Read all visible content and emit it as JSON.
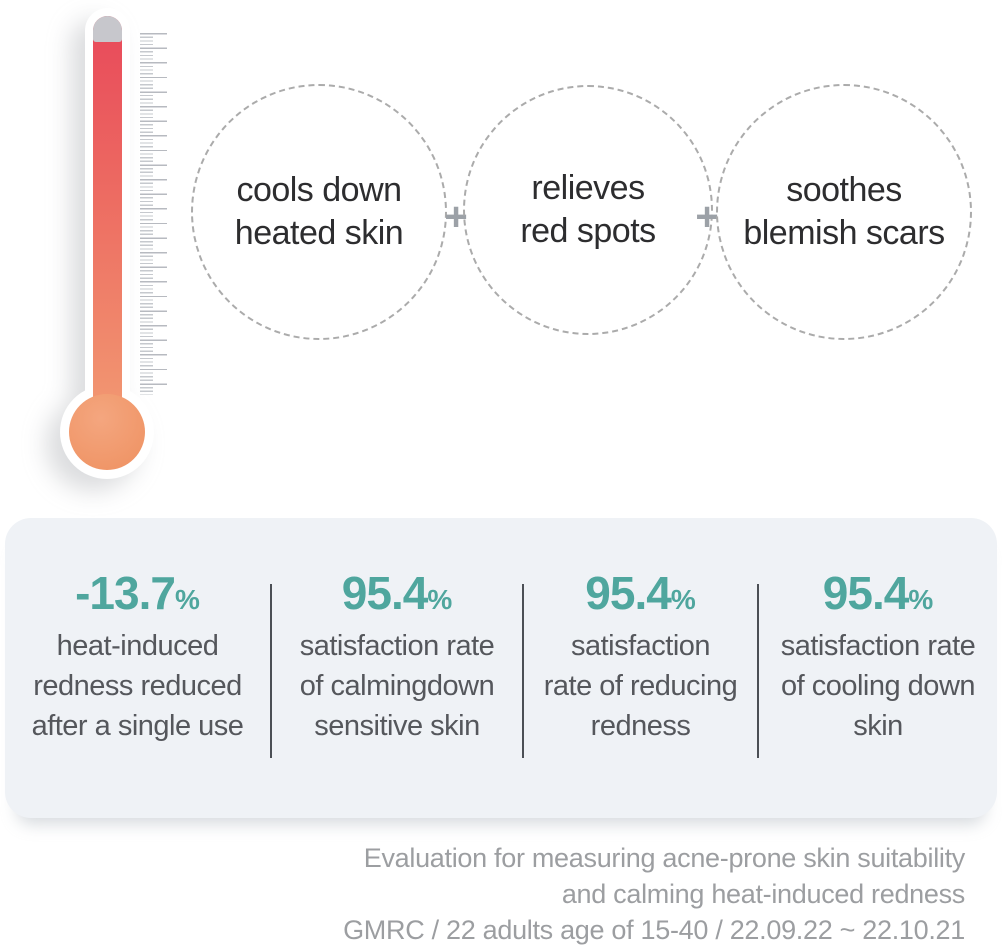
{
  "benefits": {
    "separator": "+",
    "items": [
      {
        "lines": [
          "cools down",
          "heated skin"
        ]
      },
      {
        "lines": [
          "relieves",
          "red spots"
        ]
      },
      {
        "lines": [
          "soothes",
          "blemish scars"
        ]
      }
    ]
  },
  "stats": {
    "items": [
      {
        "value": "-13.7",
        "unit": "%",
        "lines": [
          "heat-induced",
          "redness reduced",
          "after a single use"
        ]
      },
      {
        "value": "95.4",
        "unit": "%",
        "lines": [
          "satisfaction rate",
          "of calmingdown",
          "sensitive skin"
        ]
      },
      {
        "value": "95.4",
        "unit": "%",
        "lines": [
          "satisfaction",
          "rate of reducing",
          "redness"
        ]
      },
      {
        "value": "95.4",
        "unit": "%",
        "lines": [
          "satisfaction rate",
          "of cooling down",
          "skin"
        ]
      }
    ]
  },
  "footnote": {
    "lines": [
      "Evaluation for measuring acne-prone skin suitability",
      "and calming heat-induced redness",
      "GMRC / 22 adults age of 15-40 / 22.09.22 ~ 22.10.21"
    ]
  },
  "icons": {
    "thermometer": "thermometer-icon",
    "plus": "plus-icon"
  },
  "colors": {
    "accent_teal": "#4FA69E",
    "thermo_gradient_top": "#E8485A",
    "thermo_gradient_bottom": "#F29972",
    "thermo_cap_gray": "#C7C7CC",
    "panel_background": "#EFF2F6",
    "divider": "#4B4F55",
    "circle_dash": "#ABABAB",
    "body_text": "#2D2D2F",
    "stat_text": "#55575C",
    "footnote_text": "#9C9EA1"
  }
}
